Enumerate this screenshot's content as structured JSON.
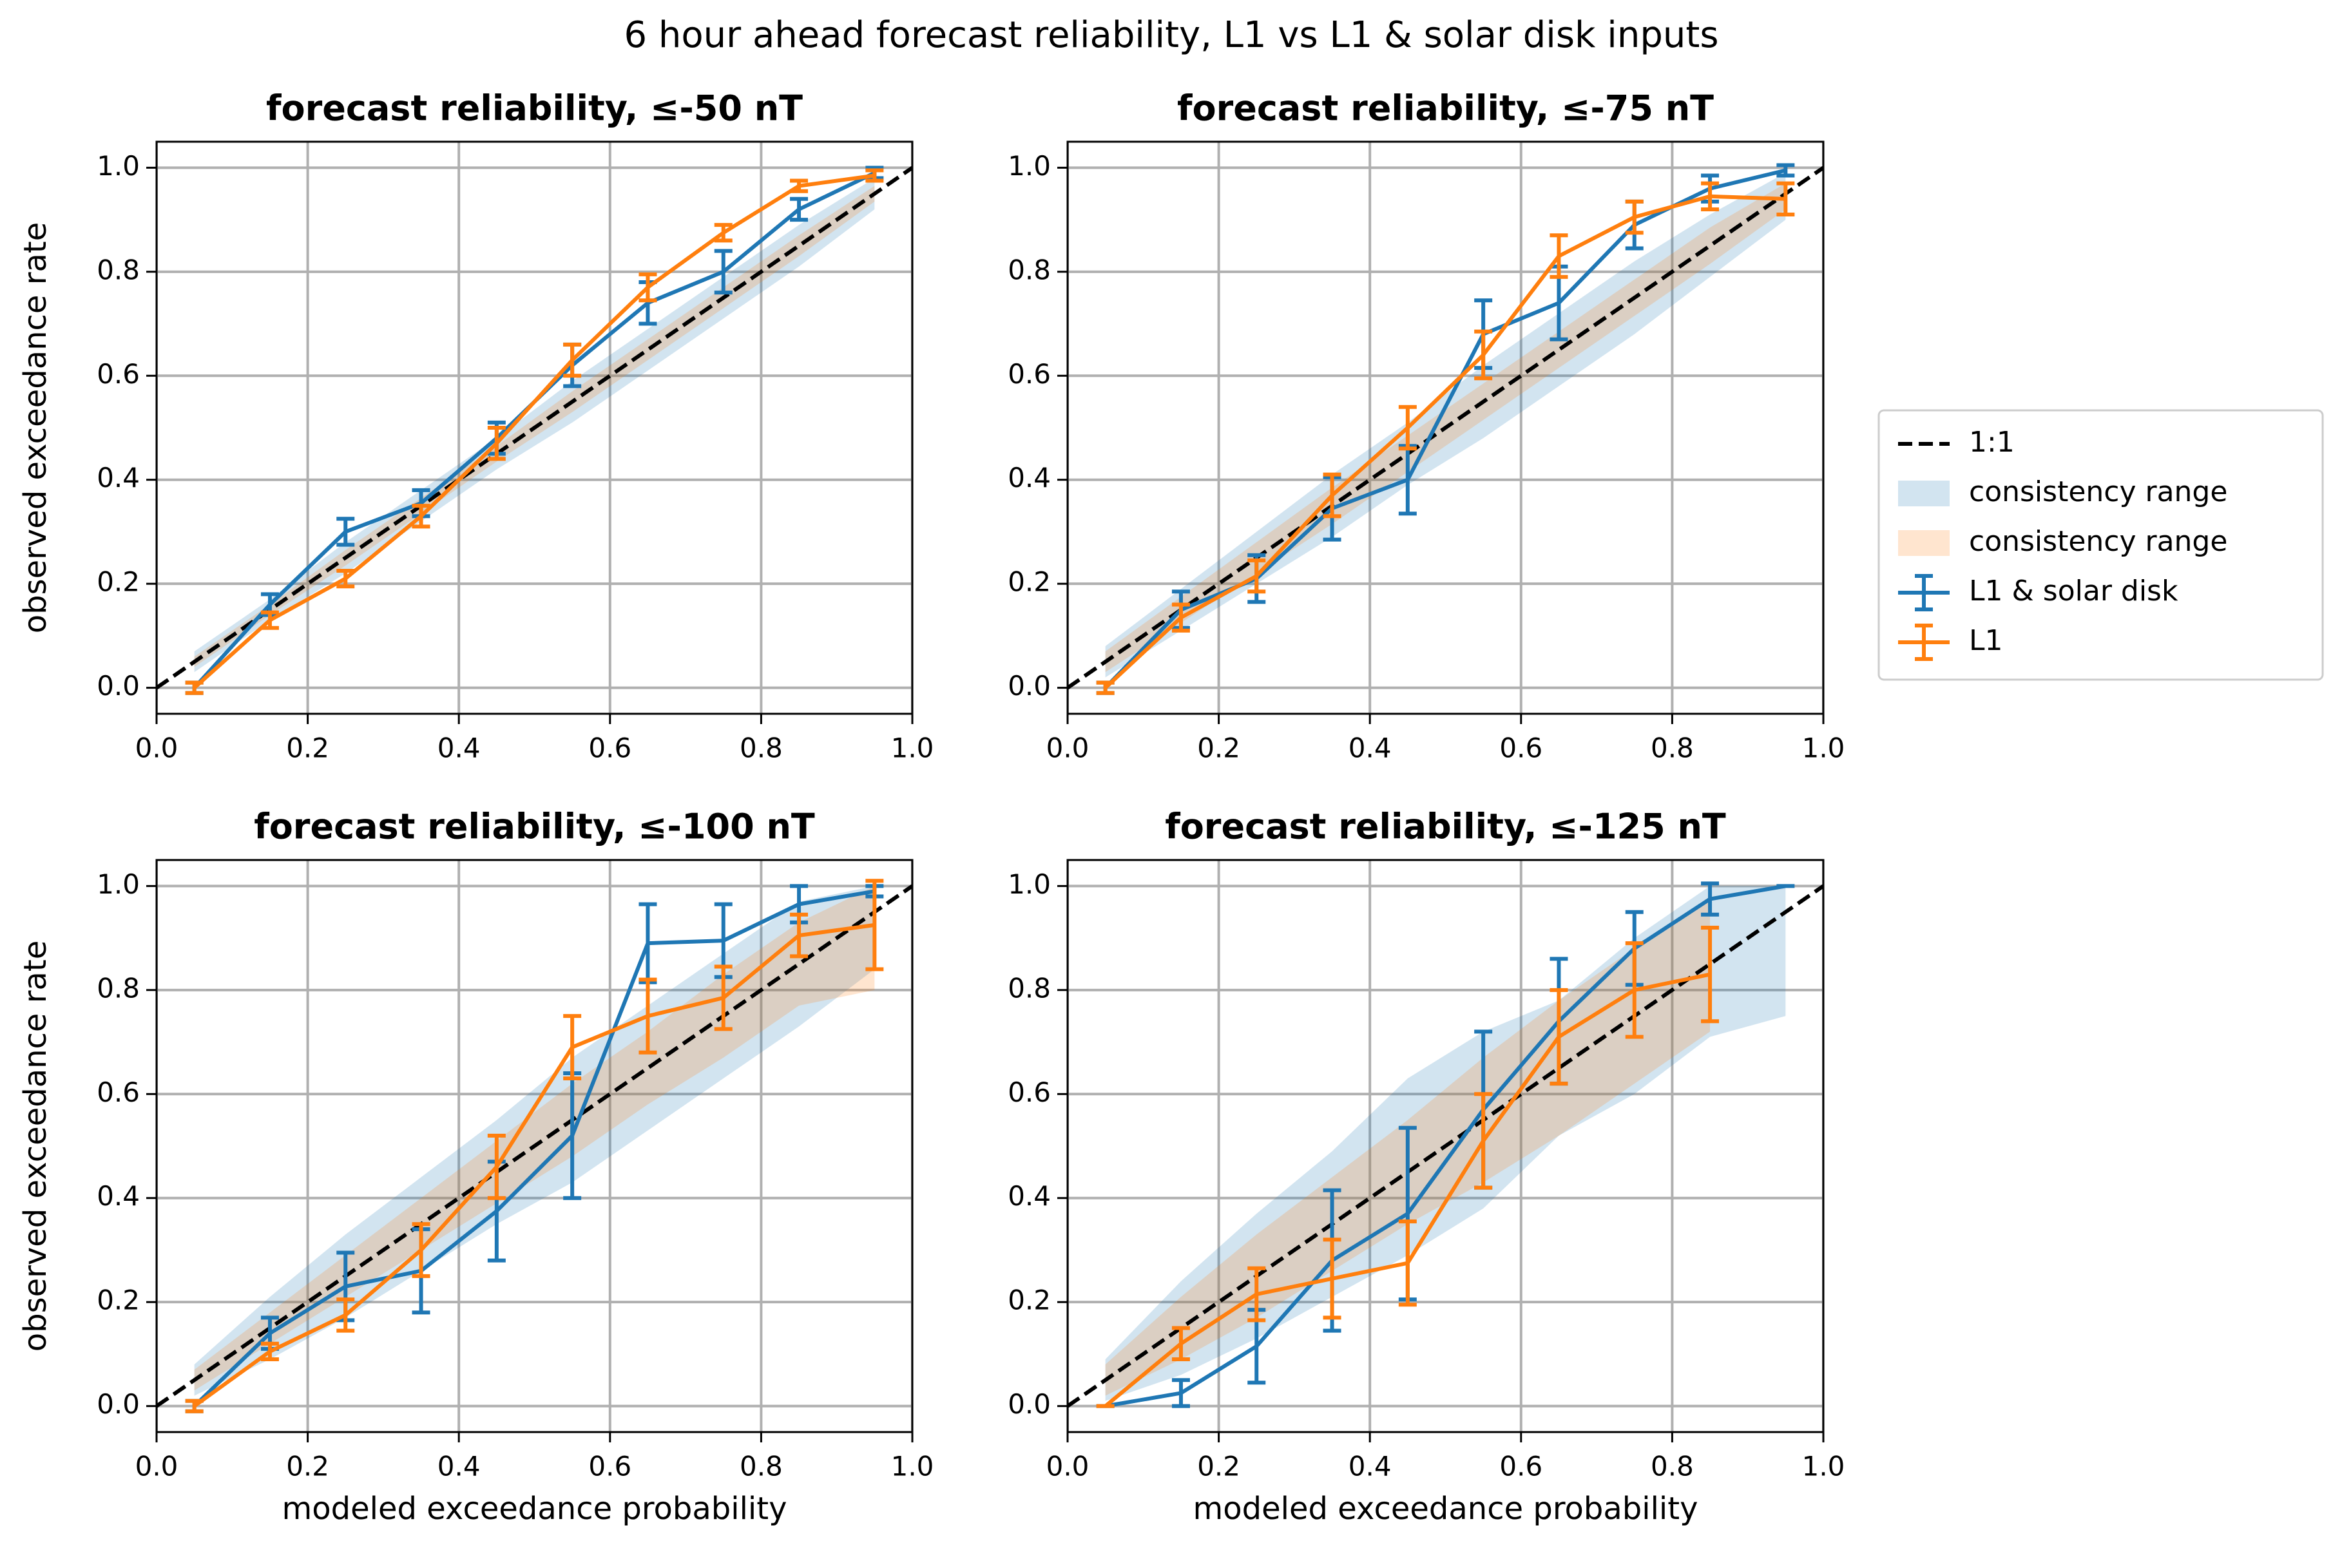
{
  "title": "6 hour ahead forecast reliability, L1 vs L1 & solar disk inputs",
  "legend": {
    "position": "right"
  },
  "chart_data": [
    {
      "type": "line",
      "title": "forecast reliability, ≤-50 nT",
      "ylabel": "observed exceedance rate",
      "xlim": [
        0,
        1
      ],
      "ylim": [
        -0.05,
        1.05
      ],
      "grid": true,
      "xticks": [
        {
          "value": 0,
          "label": "0.0"
        },
        0.2,
        0.4,
        0.6,
        0.8,
        {
          "value": 1,
          "label": "1.0"
        }
      ],
      "yticks": [
        {
          "value": 0,
          "label": "0.0"
        },
        0.2,
        0.4,
        0.6,
        0.8,
        {
          "value": 1,
          "label": "1.0"
        }
      ],
      "diagonal": {
        "name": "1:1",
        "color": "#000000",
        "x": [
          0,
          1
        ],
        "values": [
          0,
          1
        ]
      },
      "bands": [
        {
          "name": "consistency range",
          "color": "#1f77b4",
          "alpha": 0.2,
          "x": [
            0.05,
            0.15,
            0.25,
            0.35,
            0.45,
            0.55,
            0.65,
            0.75,
            0.85,
            0.95
          ],
          "lower": [
            0.03,
            0.13,
            0.22,
            0.32,
            0.42,
            0.51,
            0.61,
            0.71,
            0.81,
            0.92
          ],
          "upper": [
            0.07,
            0.17,
            0.28,
            0.38,
            0.48,
            0.59,
            0.69,
            0.79,
            0.89,
            0.98
          ]
        },
        {
          "name": "consistency range",
          "color": "#ff7f0e",
          "alpha": 0.2,
          "x": [
            0.05,
            0.15,
            0.25,
            0.35,
            0.45,
            0.55,
            0.65,
            0.75,
            0.85,
            0.95
          ],
          "lower": [
            0.04,
            0.14,
            0.235,
            0.335,
            0.435,
            0.53,
            0.63,
            0.73,
            0.83,
            0.935
          ],
          "upper": [
            0.06,
            0.16,
            0.265,
            0.365,
            0.465,
            0.57,
            0.67,
            0.77,
            0.87,
            0.965
          ]
        }
      ],
      "series": [
        {
          "name": "L1 & solar disk",
          "color": "#1f77b4",
          "x": [
            0.05,
            0.15,
            0.25,
            0.35,
            0.45,
            0.55,
            0.65,
            0.75,
            0.85,
            0.95
          ],
          "values": [
            0,
            0.16,
            0.3,
            0.355,
            0.48,
            0.62,
            0.74,
            0.8,
            0.92,
            0.99
          ],
          "errors": [
            0.01,
            0.02,
            0.025,
            0.025,
            0.03,
            0.04,
            0.04,
            0.04,
            0.02,
            0.01
          ]
        },
        {
          "name": "L1",
          "color": "#ff7f0e",
          "x": [
            0.05,
            0.15,
            0.25,
            0.35,
            0.45,
            0.55,
            0.65,
            0.75,
            0.85,
            0.95
          ],
          "values": [
            0,
            0.13,
            0.21,
            0.33,
            0.47,
            0.63,
            0.77,
            0.875,
            0.965,
            0.985
          ],
          "errors": [
            0.01,
            0.015,
            0.015,
            0.02,
            0.03,
            0.03,
            0.025,
            0.015,
            0.01,
            0.01
          ]
        }
      ]
    },
    {
      "type": "line",
      "title": "forecast reliability, ≤-75 nT",
      "xlim": [
        0,
        1
      ],
      "ylim": [
        -0.05,
        1.05
      ],
      "grid": true,
      "xticks": [
        {
          "value": 0,
          "label": "0.0"
        },
        0.2,
        0.4,
        0.6,
        0.8,
        {
          "value": 1,
          "label": "1.0"
        }
      ],
      "yticks": [
        {
          "value": 0,
          "label": "0.0"
        },
        0.2,
        0.4,
        0.6,
        0.8,
        {
          "value": 1,
          "label": "1.0"
        }
      ],
      "diagonal": {
        "name": "1:1",
        "color": "#000000",
        "x": [
          0,
          1
        ],
        "values": [
          0,
          1
        ]
      },
      "bands": [
        {
          "name": "consistency range",
          "color": "#1f77b4",
          "alpha": 0.2,
          "x": [
            0.05,
            0.15,
            0.25,
            0.35,
            0.45,
            0.55,
            0.65,
            0.75,
            0.85,
            0.95
          ],
          "lower": [
            0.02,
            0.11,
            0.2,
            0.29,
            0.39,
            0.48,
            0.58,
            0.68,
            0.79,
            0.9
          ],
          "upper": [
            0.08,
            0.19,
            0.3,
            0.41,
            0.51,
            0.62,
            0.72,
            0.82,
            0.91,
            0.99
          ]
        },
        {
          "name": "consistency range",
          "color": "#ff7f0e",
          "alpha": 0.2,
          "x": [
            0.05,
            0.15,
            0.25,
            0.35,
            0.45,
            0.55,
            0.65,
            0.75,
            0.85,
            0.95
          ],
          "lower": [
            0.03,
            0.125,
            0.22,
            0.315,
            0.415,
            0.515,
            0.615,
            0.715,
            0.815,
            0.92
          ],
          "upper": [
            0.07,
            0.175,
            0.28,
            0.385,
            0.485,
            0.585,
            0.685,
            0.785,
            0.885,
            0.97
          ]
        }
      ],
      "series": [
        {
          "name": "L1 & solar disk",
          "color": "#1f77b4",
          "x": [
            0.05,
            0.15,
            0.25,
            0.35,
            0.45,
            0.55,
            0.65,
            0.75,
            0.85,
            0.95
          ],
          "values": [
            0,
            0.15,
            0.21,
            0.345,
            0.4,
            0.68,
            0.74,
            0.89,
            0.96,
            0.995
          ],
          "errors": [
            0.01,
            0.035,
            0.045,
            0.06,
            0.065,
            0.065,
            0.07,
            0.045,
            0.025,
            0.01
          ]
        },
        {
          "name": "L1",
          "color": "#ff7f0e",
          "x": [
            0.05,
            0.15,
            0.25,
            0.35,
            0.45,
            0.55,
            0.65,
            0.75,
            0.85,
            0.95
          ],
          "values": [
            0,
            0.135,
            0.215,
            0.37,
            0.5,
            0.64,
            0.83,
            0.905,
            0.945,
            0.94
          ],
          "errors": [
            0.01,
            0.025,
            0.03,
            0.04,
            0.04,
            0.045,
            0.04,
            0.03,
            0.025,
            0.03
          ]
        }
      ]
    },
    {
      "type": "line",
      "title": "forecast reliability, ≤-100 nT",
      "xlabel": "modeled exceedance probability",
      "ylabel": "observed exceedance rate",
      "xlim": [
        0,
        1
      ],
      "ylim": [
        -0.05,
        1.05
      ],
      "grid": true,
      "xticks": [
        {
          "value": 0,
          "label": "0.0"
        },
        0.2,
        0.4,
        0.6,
        0.8,
        {
          "value": 1,
          "label": "1.0"
        }
      ],
      "yticks": [
        {
          "value": 0,
          "label": "0.0"
        },
        0.2,
        0.4,
        0.6,
        0.8,
        {
          "value": 1,
          "label": "1.0"
        }
      ],
      "diagonal": {
        "name": "1:1",
        "color": "#000000",
        "x": [
          0,
          1
        ],
        "values": [
          0,
          1
        ]
      },
      "bands": [
        {
          "name": "consistency range",
          "color": "#1f77b4",
          "alpha": 0.2,
          "x": [
            0.05,
            0.15,
            0.25,
            0.35,
            0.45,
            0.55,
            0.65,
            0.75,
            0.85,
            0.95
          ],
          "lower": [
            0.02,
            0.09,
            0.17,
            0.26,
            0.35,
            0.43,
            0.53,
            0.63,
            0.73,
            0.84
          ],
          "upper": [
            0.08,
            0.21,
            0.33,
            0.44,
            0.55,
            0.67,
            0.77,
            0.87,
            0.97,
            1
          ]
        },
        {
          "name": "consistency range",
          "color": "#ff7f0e",
          "alpha": 0.2,
          "x": [
            0.05,
            0.15,
            0.25,
            0.35,
            0.45,
            0.55,
            0.65,
            0.75,
            0.85,
            0.95
          ],
          "lower": [
            0.03,
            0.12,
            0.21,
            0.3,
            0.39,
            0.48,
            0.58,
            0.67,
            0.77,
            0.8
          ],
          "upper": [
            0.07,
            0.18,
            0.29,
            0.4,
            0.51,
            0.62,
            0.72,
            0.83,
            0.93,
            1
          ]
        }
      ],
      "series": [
        {
          "name": "L1 & solar disk",
          "color": "#1f77b4",
          "x": [
            0.05,
            0.15,
            0.25,
            0.35,
            0.45,
            0.55,
            0.65,
            0.75,
            0.85,
            0.95
          ],
          "values": [
            0,
            0.14,
            0.23,
            0.26,
            0.375,
            0.52,
            0.89,
            0.895,
            0.965,
            0.99
          ],
          "errors": [
            0.01,
            0.03,
            0.065,
            0.08,
            0.095,
            0.12,
            0.075,
            0.07,
            0.035,
            0.01
          ]
        },
        {
          "name": "L1",
          "color": "#ff7f0e",
          "x": [
            0.05,
            0.15,
            0.25,
            0.35,
            0.45,
            0.55,
            0.65,
            0.75,
            0.85,
            0.95
          ],
          "values": [
            0,
            0.105,
            0.175,
            0.3,
            0.46,
            0.69,
            0.75,
            0.785,
            0.905,
            0.925
          ],
          "errors": [
            0.01,
            0.015,
            0.03,
            0.05,
            0.06,
            0.06,
            0.07,
            0.06,
            0.04,
            0.085
          ]
        }
      ]
    },
    {
      "type": "line",
      "title": "forecast reliability, ≤-125 nT",
      "xlabel": "modeled exceedance probability",
      "xlim": [
        0,
        1
      ],
      "ylim": [
        -0.05,
        1.05
      ],
      "grid": true,
      "xticks": [
        {
          "value": 0,
          "label": "0.0"
        },
        0.2,
        0.4,
        0.6,
        0.8,
        {
          "value": 1,
          "label": "1.0"
        }
      ],
      "yticks": [
        {
          "value": 0,
          "label": "0.0"
        },
        0.2,
        0.4,
        0.6,
        0.8,
        {
          "value": 1,
          "label": "1.0"
        }
      ],
      "diagonal": {
        "name": "1:1",
        "color": "#000000",
        "x": [
          0,
          1
        ],
        "values": [
          0,
          1
        ]
      },
      "bands": [
        {
          "name": "consistency range",
          "color": "#1f77b4",
          "alpha": 0.2,
          "x": [
            0.05,
            0.15,
            0.25,
            0.35,
            0.45,
            0.55,
            0.65,
            0.75,
            0.85,
            0.95
          ],
          "lower": [
            0.01,
            0.06,
            0.13,
            0.21,
            0.29,
            0.38,
            0.52,
            0.6,
            0.71,
            0.75
          ],
          "upper": [
            0.09,
            0.24,
            0.37,
            0.49,
            0.63,
            0.72,
            0.78,
            0.9,
            1,
            1
          ]
        },
        {
          "name": "consistency range",
          "color": "#ff7f0e",
          "alpha": 0.2,
          "x": [
            0.05,
            0.15,
            0.25,
            0.35,
            0.45,
            0.55,
            0.65,
            0.75,
            0.85
          ],
          "lower": [
            0.02,
            0.09,
            0.17,
            0.26,
            0.35,
            0.43,
            0.52,
            0.62,
            0.72
          ],
          "upper": [
            0.08,
            0.21,
            0.33,
            0.44,
            0.55,
            0.67,
            0.78,
            0.88,
            0.98
          ]
        }
      ],
      "series": [
        {
          "name": "L1 & solar disk",
          "color": "#1f77b4",
          "x": [
            0.05,
            0.15,
            0.25,
            0.35,
            0.45,
            0.55,
            0.65,
            0.75,
            0.85,
            0.95
          ],
          "values": [
            0,
            0.025,
            0.115,
            0.28,
            0.37,
            0.57,
            0.74,
            0.88,
            0.975,
            1
          ],
          "errors": [
            0,
            0.025,
            0.07,
            0.135,
            0.165,
            0.15,
            0.12,
            0.07,
            0.03,
            0
          ]
        },
        {
          "name": "L1",
          "color": "#ff7f0e",
          "x": [
            0.05,
            0.15,
            0.25,
            0.35,
            0.45,
            0.55,
            0.65,
            0.75,
            0.85
          ],
          "values": [
            0,
            0.12,
            0.215,
            0.245,
            0.275,
            0.51,
            0.71,
            0.8,
            0.83
          ],
          "errors": [
            0,
            0.03,
            0.05,
            0.075,
            0.08,
            0.09,
            0.09,
            0.09,
            0.09
          ]
        }
      ]
    }
  ]
}
